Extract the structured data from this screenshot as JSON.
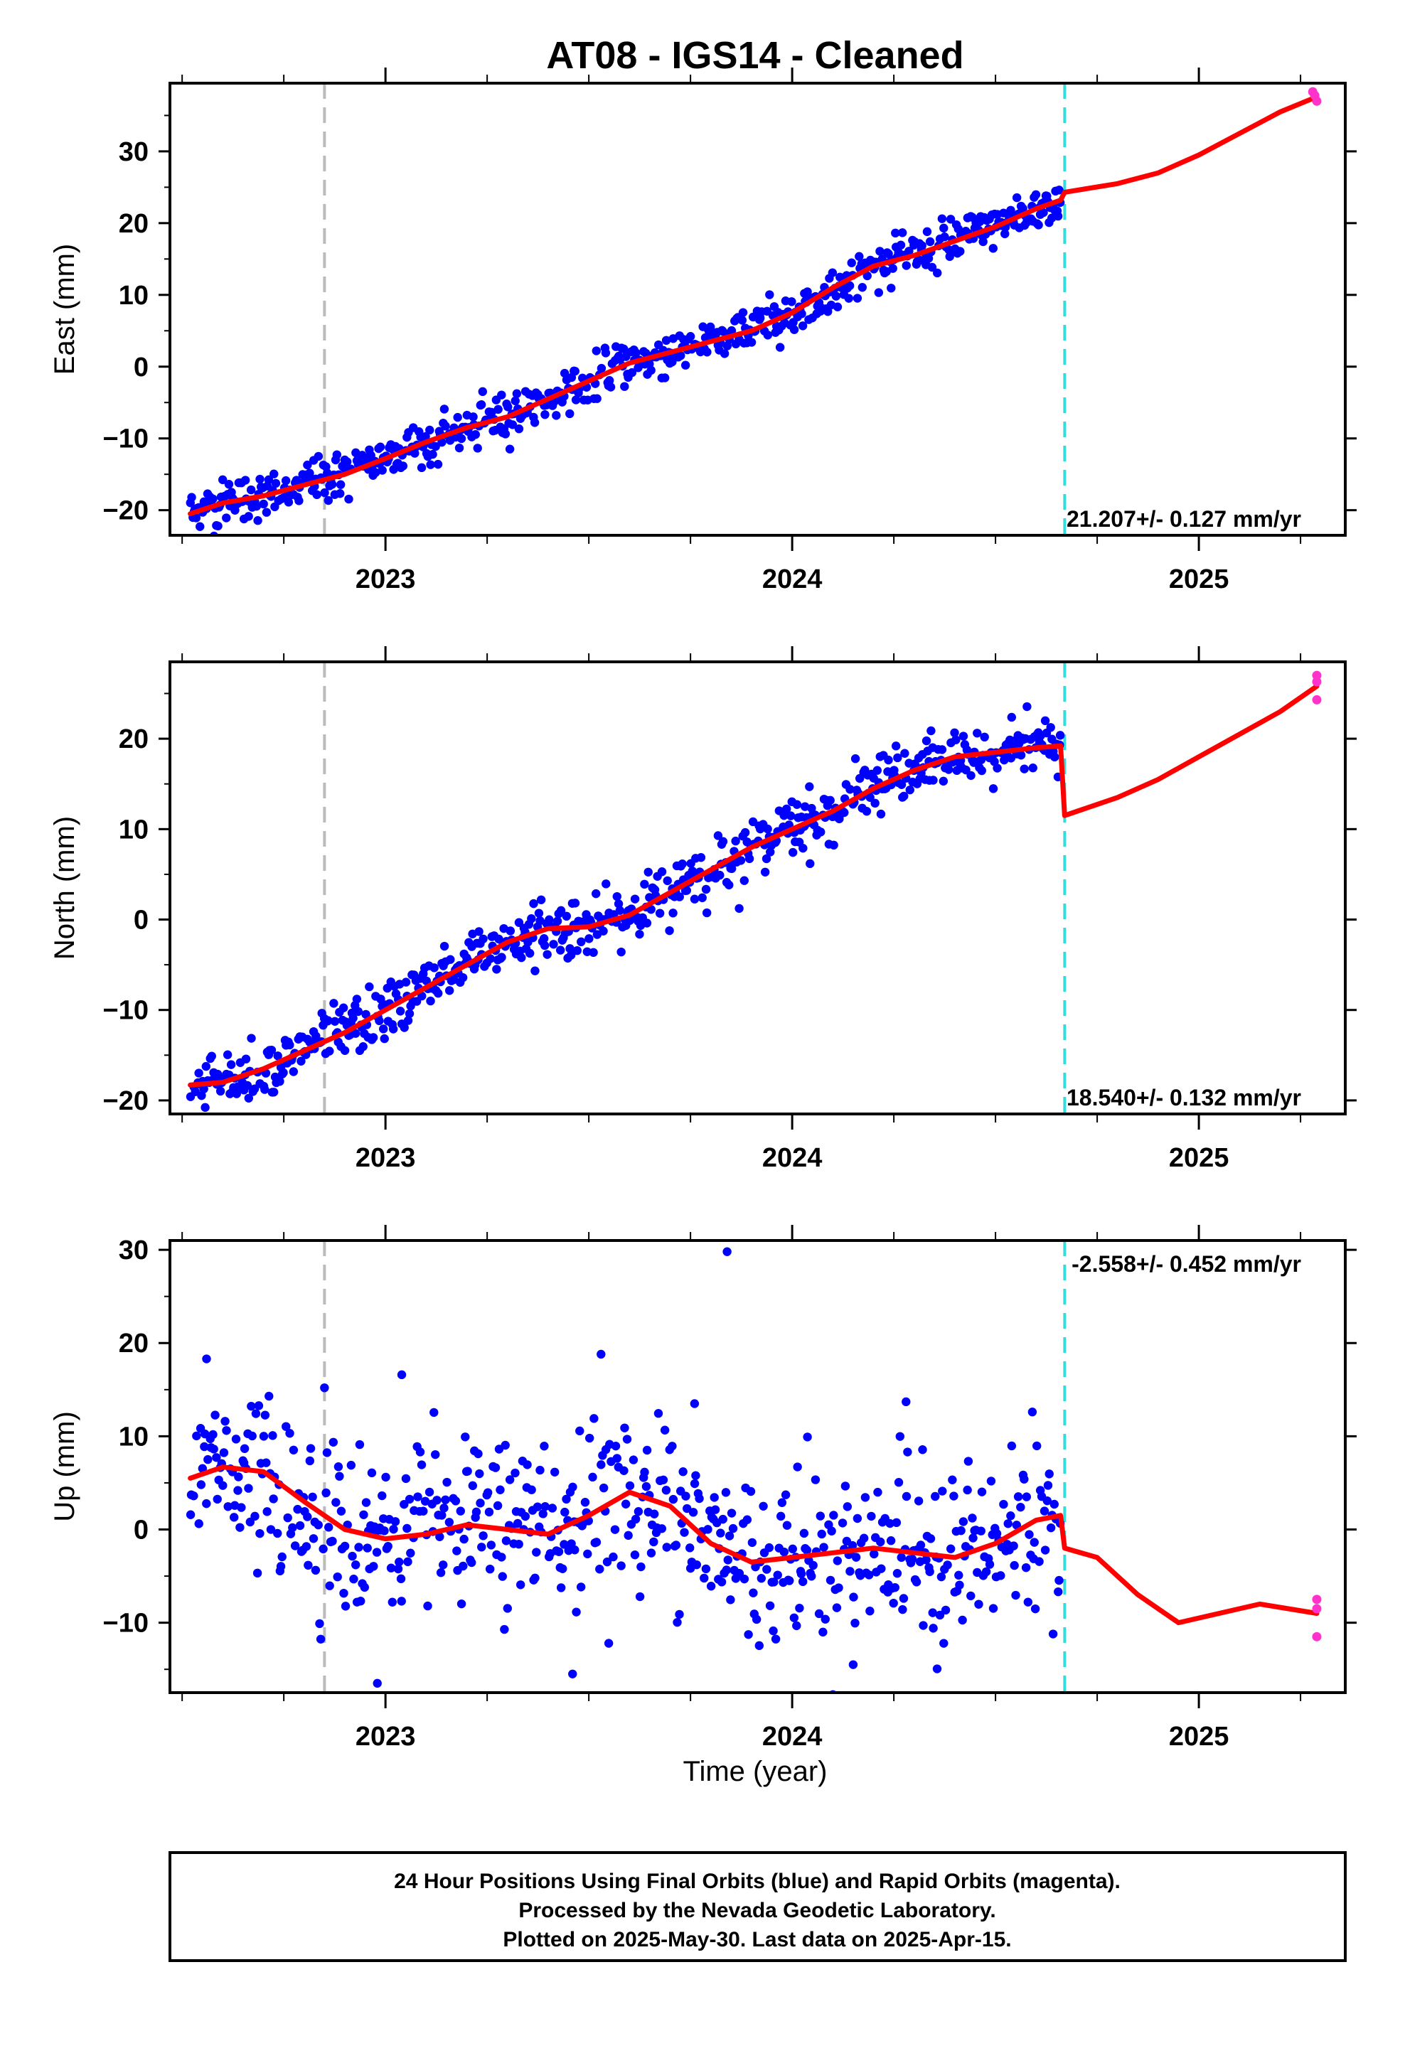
{
  "title": "AT08  - IGS14 - Cleaned",
  "xlabel": "Time (year)",
  "footer": [
    "24 Hour Positions Using Final Orbits (blue) and Rapid Orbits (magenta).",
    "Processed by the Nevada Geodetic Laboratory.",
    "Plotted on 2025-May-30. Last data on 2025-Apr-15."
  ],
  "colors": {
    "final_orbits": "#0000ff",
    "rapid_orbits": "#ff33cc",
    "model": "#ff0000",
    "equipment_change": "#bbbbbb",
    "offset": "#33dddd"
  },
  "chart_data": [
    {
      "type": "scatter",
      "component": "east",
      "ylabel": "East (mm)",
      "rate_label": "21.207+/- 0.127 mm/yr",
      "xlim": [
        2022.47,
        2025.36
      ],
      "ylim": [
        -23.5,
        39.5
      ],
      "xticks": [
        2023,
        2024,
        2025
      ],
      "yticks": [
        -20,
        -10,
        0,
        10,
        20,
        30
      ],
      "legend": "none",
      "grid": false,
      "vlines": [
        {
          "x": 2022.85,
          "kind": "equipment_change"
        },
        {
          "x": 2024.67,
          "kind": "offset"
        }
      ],
      "final_orbits_trend": {
        "x": [
          2022.52,
          2024.66
        ],
        "y": [
          -20.5,
          23.0
        ],
        "scatter_sd": 1.6
      },
      "model": [
        [
          2022.52,
          -20.5
        ],
        [
          2022.6,
          -19.0
        ],
        [
          2022.7,
          -18.0
        ],
        [
          2022.8,
          -16.5
        ],
        [
          2022.9,
          -15.0
        ],
        [
          2023.0,
          -12.8
        ],
        [
          2023.1,
          -10.5
        ],
        [
          2023.2,
          -8.5
        ],
        [
          2023.3,
          -7.0
        ],
        [
          2023.4,
          -4.5
        ],
        [
          2023.5,
          -2.0
        ],
        [
          2023.6,
          0.5
        ],
        [
          2023.7,
          2.0
        ],
        [
          2023.8,
          3.5
        ],
        [
          2023.9,
          5.0
        ],
        [
          2024.0,
          7.5
        ],
        [
          2024.1,
          11.0
        ],
        [
          2024.2,
          14.0
        ],
        [
          2024.3,
          15.5
        ],
        [
          2024.4,
          17.5
        ],
        [
          2024.5,
          19.5
        ],
        [
          2024.6,
          22.0
        ],
        [
          2024.66,
          23.2
        ],
        [
          2024.67,
          24.3
        ],
        [
          2024.8,
          25.5
        ],
        [
          2024.9,
          27.0
        ],
        [
          2025.0,
          29.5
        ],
        [
          2025.1,
          32.5
        ],
        [
          2025.2,
          35.5
        ],
        [
          2025.29,
          37.6
        ]
      ],
      "rapid_orbits": [
        [
          2025.28,
          38.3
        ],
        [
          2025.285,
          37.8
        ],
        [
          2025.29,
          37.0
        ]
      ]
    },
    {
      "type": "scatter",
      "component": "north",
      "ylabel": "North (mm)",
      "rate_label": "18.540+/- 0.132 mm/yr",
      "xlim": [
        2022.47,
        2025.36
      ],
      "ylim": [
        -21.5,
        28.5
      ],
      "xticks": [
        2023,
        2024,
        2025
      ],
      "yticks": [
        -20,
        -10,
        0,
        10,
        20
      ],
      "legend": "none",
      "grid": false,
      "vlines": [
        {
          "x": 2022.85,
          "kind": "equipment_change"
        },
        {
          "x": 2024.67,
          "kind": "offset"
        }
      ],
      "final_orbits_trend": {
        "x": [
          2022.52,
          2024.66
        ],
        "y": [
          -18.5,
          19.0
        ],
        "scatter_sd": 1.6
      },
      "model": [
        [
          2022.52,
          -18.3
        ],
        [
          2022.6,
          -18.0
        ],
        [
          2022.7,
          -16.5
        ],
        [
          2022.8,
          -14.5
        ],
        [
          2022.9,
          -12.5
        ],
        [
          2023.0,
          -10.0
        ],
        [
          2023.1,
          -7.5
        ],
        [
          2023.2,
          -5.0
        ],
        [
          2023.3,
          -2.5
        ],
        [
          2023.4,
          -1.0
        ],
        [
          2023.5,
          -0.8
        ],
        [
          2023.6,
          0.5
        ],
        [
          2023.7,
          3.0
        ],
        [
          2023.8,
          5.5
        ],
        [
          2023.9,
          8.0
        ],
        [
          2024.0,
          10.0
        ],
        [
          2024.1,
          12.0
        ],
        [
          2024.2,
          14.5
        ],
        [
          2024.3,
          16.5
        ],
        [
          2024.4,
          18.0
        ],
        [
          2024.5,
          18.5
        ],
        [
          2024.6,
          19.0
        ],
        [
          2024.66,
          19.2
        ],
        [
          2024.67,
          11.5
        ],
        [
          2024.8,
          13.5
        ],
        [
          2024.9,
          15.5
        ],
        [
          2025.0,
          18.0
        ],
        [
          2025.1,
          20.5
        ],
        [
          2025.2,
          23.0
        ],
        [
          2025.29,
          25.8
        ]
      ],
      "rapid_orbits": [
        [
          2025.29,
          27.0
        ],
        [
          2025.29,
          26.3
        ],
        [
          2025.29,
          24.3
        ]
      ]
    },
    {
      "type": "scatter",
      "component": "up",
      "ylabel": "Up (mm)",
      "rate_label": "-2.558+/- 0.452 mm/yr",
      "xlim": [
        2022.47,
        2025.36
      ],
      "ylim": [
        -17.5,
        31.0
      ],
      "xticks": [
        2023,
        2024,
        2025
      ],
      "yticks": [
        -10,
        0,
        10,
        20,
        30
      ],
      "legend": "none",
      "grid": false,
      "vlines": [
        {
          "x": 2022.85,
          "kind": "equipment_change"
        },
        {
          "x": 2024.67,
          "kind": "offset"
        }
      ],
      "final_orbits_trend": {
        "x": [
          2022.52,
          2024.66
        ],
        "y": [
          0,
          0
        ],
        "scatter_sd": 4.5
      },
      "final_orbits_notable": [
        [
          2023.84,
          29.8
        ],
        [
          2023.53,
          18.8
        ],
        [
          2022.56,
          18.3
        ],
        [
          2022.85,
          15.2
        ],
        [
          2023.04,
          16.6
        ],
        [
          2022.98,
          -16.5
        ],
        [
          2023.46,
          -15.5
        ],
        [
          2024.15,
          -14.5
        ],
        [
          2023.76,
          13.5
        ],
        [
          2024.28,
          13.7
        ]
      ],
      "model": [
        [
          2022.52,
          5.5
        ],
        [
          2022.6,
          6.7
        ],
        [
          2022.7,
          6.2
        ],
        [
          2022.8,
          3.0
        ],
        [
          2022.9,
          0.0
        ],
        [
          2023.0,
          -1.0
        ],
        [
          2023.1,
          -0.5
        ],
        [
          2023.2,
          0.5
        ],
        [
          2023.3,
          0.0
        ],
        [
          2023.4,
          -0.5
        ],
        [
          2023.5,
          1.5
        ],
        [
          2023.6,
          4.0
        ],
        [
          2023.7,
          2.5
        ],
        [
          2023.8,
          -1.5
        ],
        [
          2023.9,
          -3.5
        ],
        [
          2024.0,
          -3.0
        ],
        [
          2024.1,
          -2.5
        ],
        [
          2024.2,
          -2.0
        ],
        [
          2024.3,
          -2.5
        ],
        [
          2024.4,
          -3.0
        ],
        [
          2024.5,
          -1.5
        ],
        [
          2024.6,
          1.0
        ],
        [
          2024.66,
          1.5
        ],
        [
          2024.67,
          -2.0
        ],
        [
          2024.75,
          -3.0
        ],
        [
          2024.85,
          -7.0
        ],
        [
          2024.95,
          -10.0
        ],
        [
          2025.05,
          -9.0
        ],
        [
          2025.15,
          -8.0
        ],
        [
          2025.29,
          -9.0
        ]
      ],
      "rapid_orbits": [
        [
          2025.29,
          -7.5
        ],
        [
          2025.29,
          -8.5
        ],
        [
          2025.29,
          -11.5
        ]
      ]
    }
  ]
}
